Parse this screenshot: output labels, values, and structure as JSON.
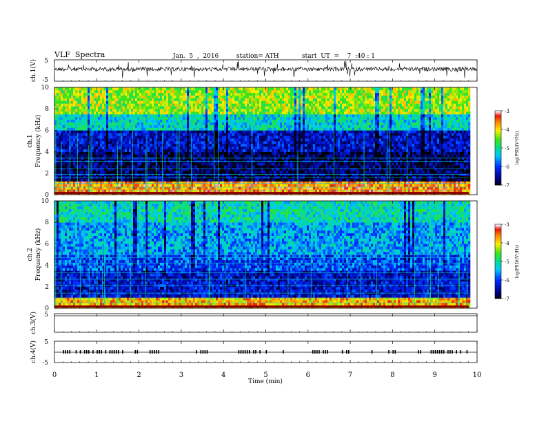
{
  "header": {
    "title": "VLF  Spectra",
    "date": "Jan.  5  ,  2016",
    "station": "station= ATH",
    "start": "start  UT  =    7  :40 : 1"
  },
  "chart_data": [
    {
      "type": "line",
      "panel": "ch1-waveform",
      "ylabel": "ch.1(V)",
      "ylim": [
        -5,
        5
      ],
      "yticks": [
        "-5",
        "5"
      ],
      "xlim": [
        0,
        10
      ],
      "series_description": "noisy waveform near 0 V with frequent spikes"
    },
    {
      "type": "heatmap",
      "panel": "ch1-spectrogram",
      "ylabel": "ch.1\nFrequency  (kHz)",
      "ylim": [
        0,
        10
      ],
      "yticks": [
        "0",
        "2",
        "4",
        "6",
        "8",
        "10"
      ],
      "xlim": [
        0,
        9.8
      ],
      "colorbar": {
        "label": "log(PSD/(V²/Hz)",
        "range": [
          -7,
          -3
        ],
        "ticks": [
          "-3",
          "-4",
          "-5",
          "-6",
          "-7"
        ]
      },
      "bands": [
        {
          "from_khz": 0,
          "to_khz": 1.2,
          "level": -3.6
        },
        {
          "from_khz": 1.2,
          "to_khz": 4.0,
          "level": -6.7
        },
        {
          "from_khz": 4.0,
          "to_khz": 6.0,
          "level": -6.3
        },
        {
          "from_khz": 6.0,
          "to_khz": 7.5,
          "level": -5.2
        },
        {
          "from_khz": 7.5,
          "to_khz": 10,
          "level": -4.3
        }
      ],
      "hlines_khz": [
        0.35,
        0.7,
        1.05,
        1.6,
        1.9,
        2.4,
        3.1,
        3.4
      ]
    },
    {
      "type": "heatmap",
      "panel": "ch2-spectrogram",
      "ylabel": "ch.2\nFrequency  (kHz)",
      "ylim": [
        0,
        10
      ],
      "yticks": [
        "0",
        "2",
        "4",
        "6",
        "8",
        "10"
      ],
      "xlim": [
        0,
        9.8
      ],
      "colorbar": {
        "label": "log(PSD/(V²/Hz)",
        "range": [
          -7,
          -3
        ],
        "ticks": [
          "-3",
          "-4",
          "-5",
          "-6",
          "-7"
        ]
      },
      "bands": [
        {
          "from_khz": 0,
          "to_khz": 1.0,
          "level": -3.8
        },
        {
          "from_khz": 1.0,
          "to_khz": 3.5,
          "level": -6.3
        },
        {
          "from_khz": 3.5,
          "to_khz": 5.0,
          "level": -5.9
        },
        {
          "from_khz": 5.0,
          "to_khz": 8.0,
          "level": -5.5
        },
        {
          "from_khz": 8.0,
          "to_khz": 10,
          "level": -5.1
        }
      ],
      "hlines_khz": [
        0.5,
        0.9,
        1.4,
        2.1,
        2.7,
        3.3,
        4.2,
        4.7,
        5.0
      ]
    },
    {
      "type": "line",
      "panel": "ch3-waveform",
      "ylabel": "ch.3(V)",
      "ylim": [
        -5,
        5
      ],
      "yticks": [
        "5"
      ],
      "xlim": [
        0,
        10
      ]
    },
    {
      "type": "line",
      "panel": "ch4-waveform",
      "ylabel": "ch.4(V)",
      "ylim": [
        -5,
        5
      ],
      "yticks": [
        "-5",
        "5"
      ],
      "xlim": [
        0,
        10
      ],
      "pulse_intervals_min": [
        [
          0.2,
          1.65
        ],
        [
          1.85,
          2.05
        ],
        [
          2.25,
          2.45
        ],
        [
          3.35,
          3.6
        ],
        [
          4.35,
          5.0
        ],
        [
          5.4,
          5.5
        ],
        [
          6.1,
          6.25
        ],
        [
          6.35,
          6.5
        ],
        [
          6.8,
          7.05
        ],
        [
          7.5,
          7.6
        ],
        [
          7.9,
          8.1
        ],
        [
          8.6,
          8.75
        ],
        [
          8.9,
          9.8
        ]
      ]
    }
  ],
  "xaxis": {
    "label": "Time  (min)",
    "ticks": [
      "0",
      "1",
      "2",
      "3",
      "4",
      "5",
      "6",
      "7",
      "8",
      "9",
      "10"
    ],
    "range": [
      0,
      10
    ]
  }
}
